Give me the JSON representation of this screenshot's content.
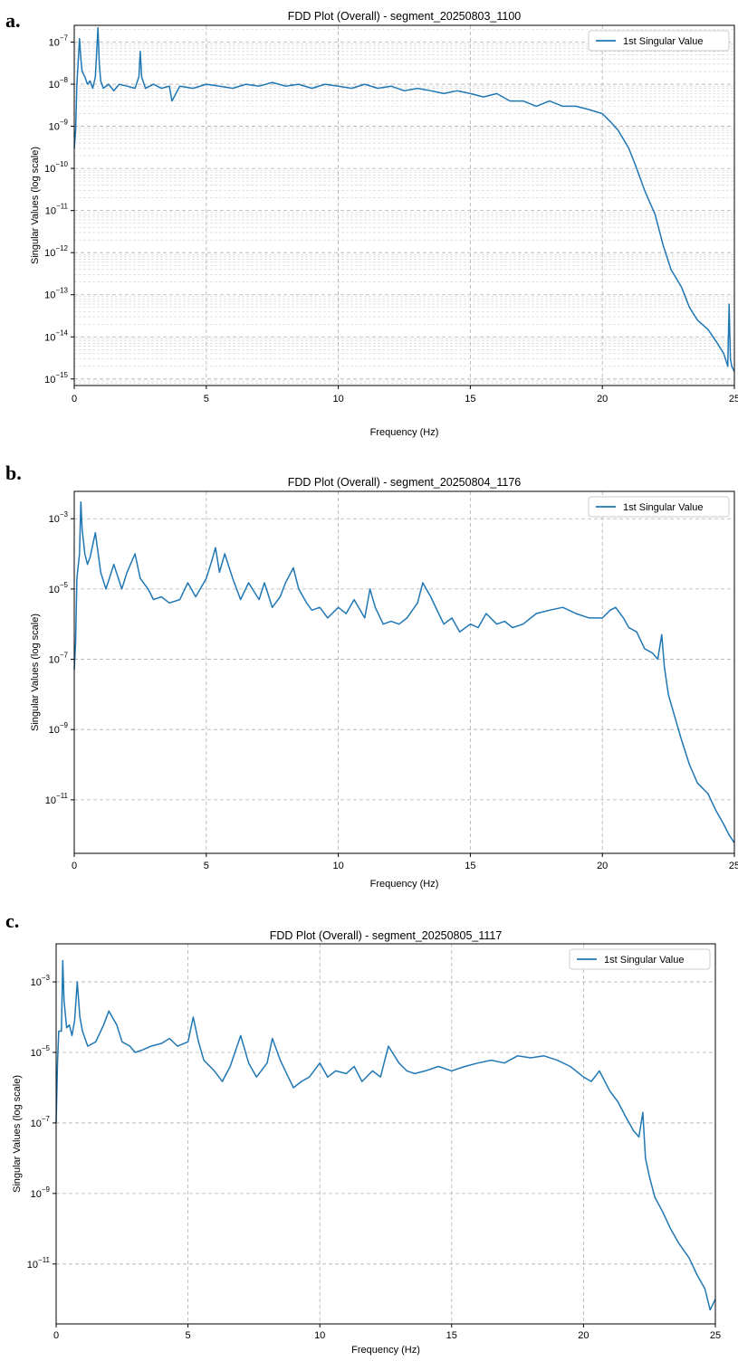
{
  "colors": {
    "line": "#1f77b4",
    "grid": "#b0b0b0",
    "axis": "#000000"
  },
  "chart_data": [
    {
      "type": "line",
      "panel_label": "a.",
      "title": "FDD Plot (Overall) - segment_20250803_1100",
      "xlabel": "Frequency (Hz)",
      "ylabel": "Singular Values (log scale)",
      "xlim": [
        0,
        25
      ],
      "ylim": [
        7e-16,
        2.5e-07
      ],
      "y_scale": "log",
      "minor_grid": true,
      "x_ticks": [
        "0",
        "5",
        "10",
        "15",
        "20",
        "25"
      ],
      "y_ticks": [
        {
          "value": 1e-07,
          "base": "10",
          "exp": "−7"
        },
        {
          "value": 1e-08,
          "base": "10",
          "exp": "−8"
        },
        {
          "value": 1e-09,
          "base": "10",
          "exp": "−9"
        },
        {
          "value": 1e-10,
          "base": "10",
          "exp": "−10"
        },
        {
          "value": 1e-11,
          "base": "10",
          "exp": "−11"
        },
        {
          "value": 1e-12,
          "base": "10",
          "exp": "−12"
        },
        {
          "value": 1e-13,
          "base": "10",
          "exp": "−13"
        },
        {
          "value": 1e-14,
          "base": "10",
          "exp": "−14"
        },
        {
          "value": 1e-15,
          "base": "10",
          "exp": "−15"
        }
      ],
      "legend": {
        "label": "1st Singular Value",
        "position": "top-right"
      },
      "grid": true,
      "series": [
        {
          "name": "1st Singular Value",
          "x": [
            0,
            0.05,
            0.1,
            0.2,
            0.25,
            0.3,
            0.4,
            0.5,
            0.6,
            0.7,
            0.8,
            0.9,
            0.95,
            1.0,
            1.1,
            1.3,
            1.5,
            1.7,
            2.0,
            2.3,
            2.45,
            2.5,
            2.55,
            2.7,
            3.0,
            3.3,
            3.6,
            3.7,
            4.0,
            4.5,
            5.0,
            5.5,
            6.0,
            6.5,
            7.0,
            7.5,
            8.0,
            8.5,
            9.0,
            9.5,
            10.0,
            10.5,
            11.0,
            11.5,
            12.0,
            12.5,
            13.0,
            13.5,
            14.0,
            14.5,
            15.0,
            15.5,
            16.0,
            16.5,
            17.0,
            17.5,
            18.0,
            18.5,
            19.0,
            19.5,
            20.0,
            20.3,
            20.6,
            21.0,
            21.3,
            21.6,
            22.0,
            22.3,
            22.6,
            23.0,
            23.3,
            23.6,
            24.0,
            24.3,
            24.6,
            24.75,
            24.8,
            24.85,
            24.9,
            25.0
          ],
          "y": [
            3e-10,
            8e-10,
            1e-08,
            1.2e-07,
            4e-08,
            2e-08,
            1.5e-08,
            1e-08,
            1.2e-08,
            8e-09,
            1.5e-08,
            2.2e-07,
            3e-08,
            1.2e-08,
            8e-09,
            1e-08,
            7e-09,
            1e-08,
            9e-09,
            8e-09,
            1.5e-08,
            6e-08,
            1.5e-08,
            8e-09,
            1e-08,
            8e-09,
            9e-09,
            4e-09,
            9e-09,
            8e-09,
            1e-08,
            9e-09,
            8e-09,
            1e-08,
            9e-09,
            1.1e-08,
            9e-09,
            1e-08,
            8e-09,
            1e-08,
            9e-09,
            8e-09,
            1e-08,
            8e-09,
            9e-09,
            7e-09,
            8e-09,
            7e-09,
            6e-09,
            7e-09,
            6e-09,
            5e-09,
            6e-09,
            4e-09,
            4e-09,
            3e-09,
            4e-09,
            3e-09,
            3e-09,
            2.5e-09,
            2e-09,
            1.3e-09,
            8e-10,
            3e-10,
            1e-10,
            3e-11,
            8e-12,
            1.5e-12,
            4e-13,
            1.5e-13,
            5e-14,
            2.5e-14,
            1.5e-14,
            8e-15,
            4e-15,
            2e-15,
            6e-14,
            3e-15,
            2e-15,
            1.5e-15
          ]
        }
      ]
    },
    {
      "type": "line",
      "panel_label": "b.",
      "title": "FDD Plot (Overall) - segment_20250804_1176",
      "xlabel": "Frequency (Hz)",
      "ylabel": "Singular Values (log scale)",
      "xlim": [
        0,
        25
      ],
      "ylim": [
        3e-13,
        0.006
      ],
      "y_scale": "log",
      "minor_grid": false,
      "x_ticks": [
        "0",
        "5",
        "10",
        "15",
        "20",
        "25"
      ],
      "y_ticks": [
        {
          "value": 0.001,
          "base": "10",
          "exp": "−3"
        },
        {
          "value": 1e-05,
          "base": "10",
          "exp": "−5"
        },
        {
          "value": 1e-07,
          "base": "10",
          "exp": "−7"
        },
        {
          "value": 1e-09,
          "base": "10",
          "exp": "−9"
        },
        {
          "value": 1e-11,
          "base": "10",
          "exp": "−11"
        }
      ],
      "legend": {
        "label": "1st Singular Value",
        "position": "top-right"
      },
      "grid": true,
      "series": [
        {
          "name": "1st Singular Value",
          "x": [
            0,
            0.05,
            0.1,
            0.2,
            0.25,
            0.3,
            0.4,
            0.5,
            0.6,
            0.8,
            1.0,
            1.2,
            1.5,
            1.8,
            2.0,
            2.3,
            2.5,
            2.8,
            3.0,
            3.3,
            3.6,
            4.0,
            4.3,
            4.6,
            5.0,
            5.2,
            5.35,
            5.5,
            5.7,
            6.0,
            6.3,
            6.6,
            7.0,
            7.2,
            7.5,
            7.8,
            8.0,
            8.3,
            8.5,
            8.8,
            9.0,
            9.3,
            9.6,
            10.0,
            10.3,
            10.6,
            11.0,
            11.2,
            11.4,
            11.7,
            12.0,
            12.3,
            12.6,
            13.0,
            13.2,
            13.5,
            13.8,
            14.0,
            14.3,
            14.6,
            15.0,
            15.3,
            15.6,
            16.0,
            16.3,
            16.6,
            17.0,
            17.5,
            18.0,
            18.5,
            19.0,
            19.5,
            20.0,
            20.3,
            20.5,
            20.8,
            21.0,
            21.3,
            21.6,
            21.9,
            22.1,
            22.25,
            22.35,
            22.5,
            22.7,
            23.0,
            23.3,
            23.6,
            24.0,
            24.3,
            24.6,
            24.8,
            25.0
          ],
          "y": [
            5e-08,
            3e-07,
            2e-05,
            0.0001,
            0.003,
            0.0005,
            0.0001,
            5e-05,
            8e-05,
            0.0004,
            3e-05,
            1e-05,
            5e-05,
            1e-05,
            3e-05,
            0.0001,
            2e-05,
            1e-05,
            5e-06,
            6e-06,
            4e-06,
            5e-06,
            1.5e-05,
            6e-06,
            2e-05,
            6e-05,
            0.00015,
            3e-05,
            0.0001,
            2e-05,
            5e-06,
            1.5e-05,
            5e-06,
            1.5e-05,
            3e-06,
            6e-06,
            1.5e-05,
            4e-05,
            1e-05,
            4e-06,
            2.5e-06,
            3e-06,
            1.5e-06,
            3e-06,
            2e-06,
            5e-06,
            1.5e-06,
            1e-05,
            3e-06,
            1e-06,
            1.2e-06,
            1e-06,
            1.5e-06,
            4e-06,
            1.5e-05,
            6e-06,
            2e-06,
            1e-06,
            1.5e-06,
            6e-07,
            1e-06,
            8e-07,
            2e-06,
            1e-06,
            1.2e-06,
            8e-07,
            1e-06,
            2e-06,
            2.5e-06,
            3e-06,
            2e-06,
            1.5e-06,
            1.5e-06,
            2.5e-06,
            3e-06,
            1.5e-06,
            8e-07,
            6e-07,
            2e-07,
            1.5e-07,
            1e-07,
            5e-07,
            6e-08,
            1e-08,
            3e-09,
            5e-10,
            1e-10,
            3e-11,
            1.5e-11,
            5e-12,
            2e-12,
            1e-12,
            6e-13
          ]
        }
      ]
    },
    {
      "type": "line",
      "panel_label": "c.",
      "title": "FDD Plot (Overall) - segment_20250805_1117",
      "xlabel": "Frequency (Hz)",
      "ylabel": "Singular Values (log scale)",
      "xlim": [
        0,
        25
      ],
      "ylim": [
        2e-13,
        0.012
      ],
      "y_scale": "log",
      "minor_grid": false,
      "x_ticks": [
        "0",
        "5",
        "10",
        "15",
        "20",
        "25"
      ],
      "y_ticks": [
        {
          "value": 0.001,
          "base": "10",
          "exp": "−3"
        },
        {
          "value": 1e-05,
          "base": "10",
          "exp": "−5"
        },
        {
          "value": 1e-07,
          "base": "10",
          "exp": "−7"
        },
        {
          "value": 1e-09,
          "base": "10",
          "exp": "−9"
        },
        {
          "value": 1e-11,
          "base": "10",
          "exp": "−11"
        }
      ],
      "legend": {
        "label": "1st Singular Value",
        "position": "top-right"
      },
      "grid": true,
      "series": [
        {
          "name": "1st Singular Value",
          "x": [
            0,
            0.05,
            0.1,
            0.2,
            0.25,
            0.3,
            0.4,
            0.5,
            0.6,
            0.7,
            0.8,
            0.9,
            1.0,
            1.2,
            1.5,
            1.8,
            2.0,
            2.3,
            2.5,
            2.8,
            3.0,
            3.3,
            3.6,
            4.0,
            4.3,
            4.6,
            5.0,
            5.2,
            5.4,
            5.6,
            6.0,
            6.3,
            6.6,
            7.0,
            7.3,
            7.6,
            8.0,
            8.2,
            8.5,
            8.8,
            9.0,
            9.3,
            9.6,
            10.0,
            10.3,
            10.6,
            11.0,
            11.3,
            11.6,
            12.0,
            12.3,
            12.6,
            13.0,
            13.3,
            13.6,
            14.0,
            14.5,
            15.0,
            15.5,
            16.0,
            16.5,
            17.0,
            17.5,
            18.0,
            18.5,
            19.0,
            19.5,
            20.0,
            20.3,
            20.6,
            21.0,
            21.3,
            21.6,
            21.9,
            22.1,
            22.25,
            22.35,
            22.5,
            22.7,
            23.0,
            23.3,
            23.6,
            24.0,
            24.3,
            24.6,
            24.8,
            25.0
          ],
          "y": [
            1e-07,
            5e-06,
            4e-05,
            4e-05,
            0.004,
            0.0003,
            5e-05,
            6e-05,
            3e-05,
            8e-05,
            0.001,
            0.0001,
            4e-05,
            1.5e-05,
            2e-05,
            6e-05,
            0.00015,
            6e-05,
            2e-05,
            1.5e-05,
            1e-05,
            1.2e-05,
            1.5e-05,
            1.8e-05,
            2.5e-05,
            1.5e-05,
            2e-05,
            0.0001,
            2e-05,
            6e-06,
            3e-06,
            1.5e-06,
            4e-06,
            3e-05,
            5e-06,
            2e-06,
            5e-06,
            2.5e-05,
            6e-06,
            2e-06,
            1e-06,
            1.5e-06,
            2e-06,
            5e-06,
            2e-06,
            3e-06,
            2.5e-06,
            4e-06,
            1.5e-06,
            3e-06,
            2e-06,
            1.5e-05,
            5e-06,
            3e-06,
            2.5e-06,
            3e-06,
            4e-06,
            3e-06,
            4e-06,
            5e-06,
            6e-06,
            5e-06,
            8e-06,
            7e-06,
            8e-06,
            6e-06,
            4e-06,
            2e-06,
            1.5e-06,
            3e-06,
            8e-07,
            4e-07,
            1.5e-07,
            6e-08,
            4e-08,
            2e-07,
            1e-08,
            3e-09,
            8e-10,
            3e-10,
            1e-10,
            4e-11,
            1.5e-11,
            5e-12,
            2e-12,
            5e-13,
            1e-12
          ]
        }
      ]
    }
  ]
}
